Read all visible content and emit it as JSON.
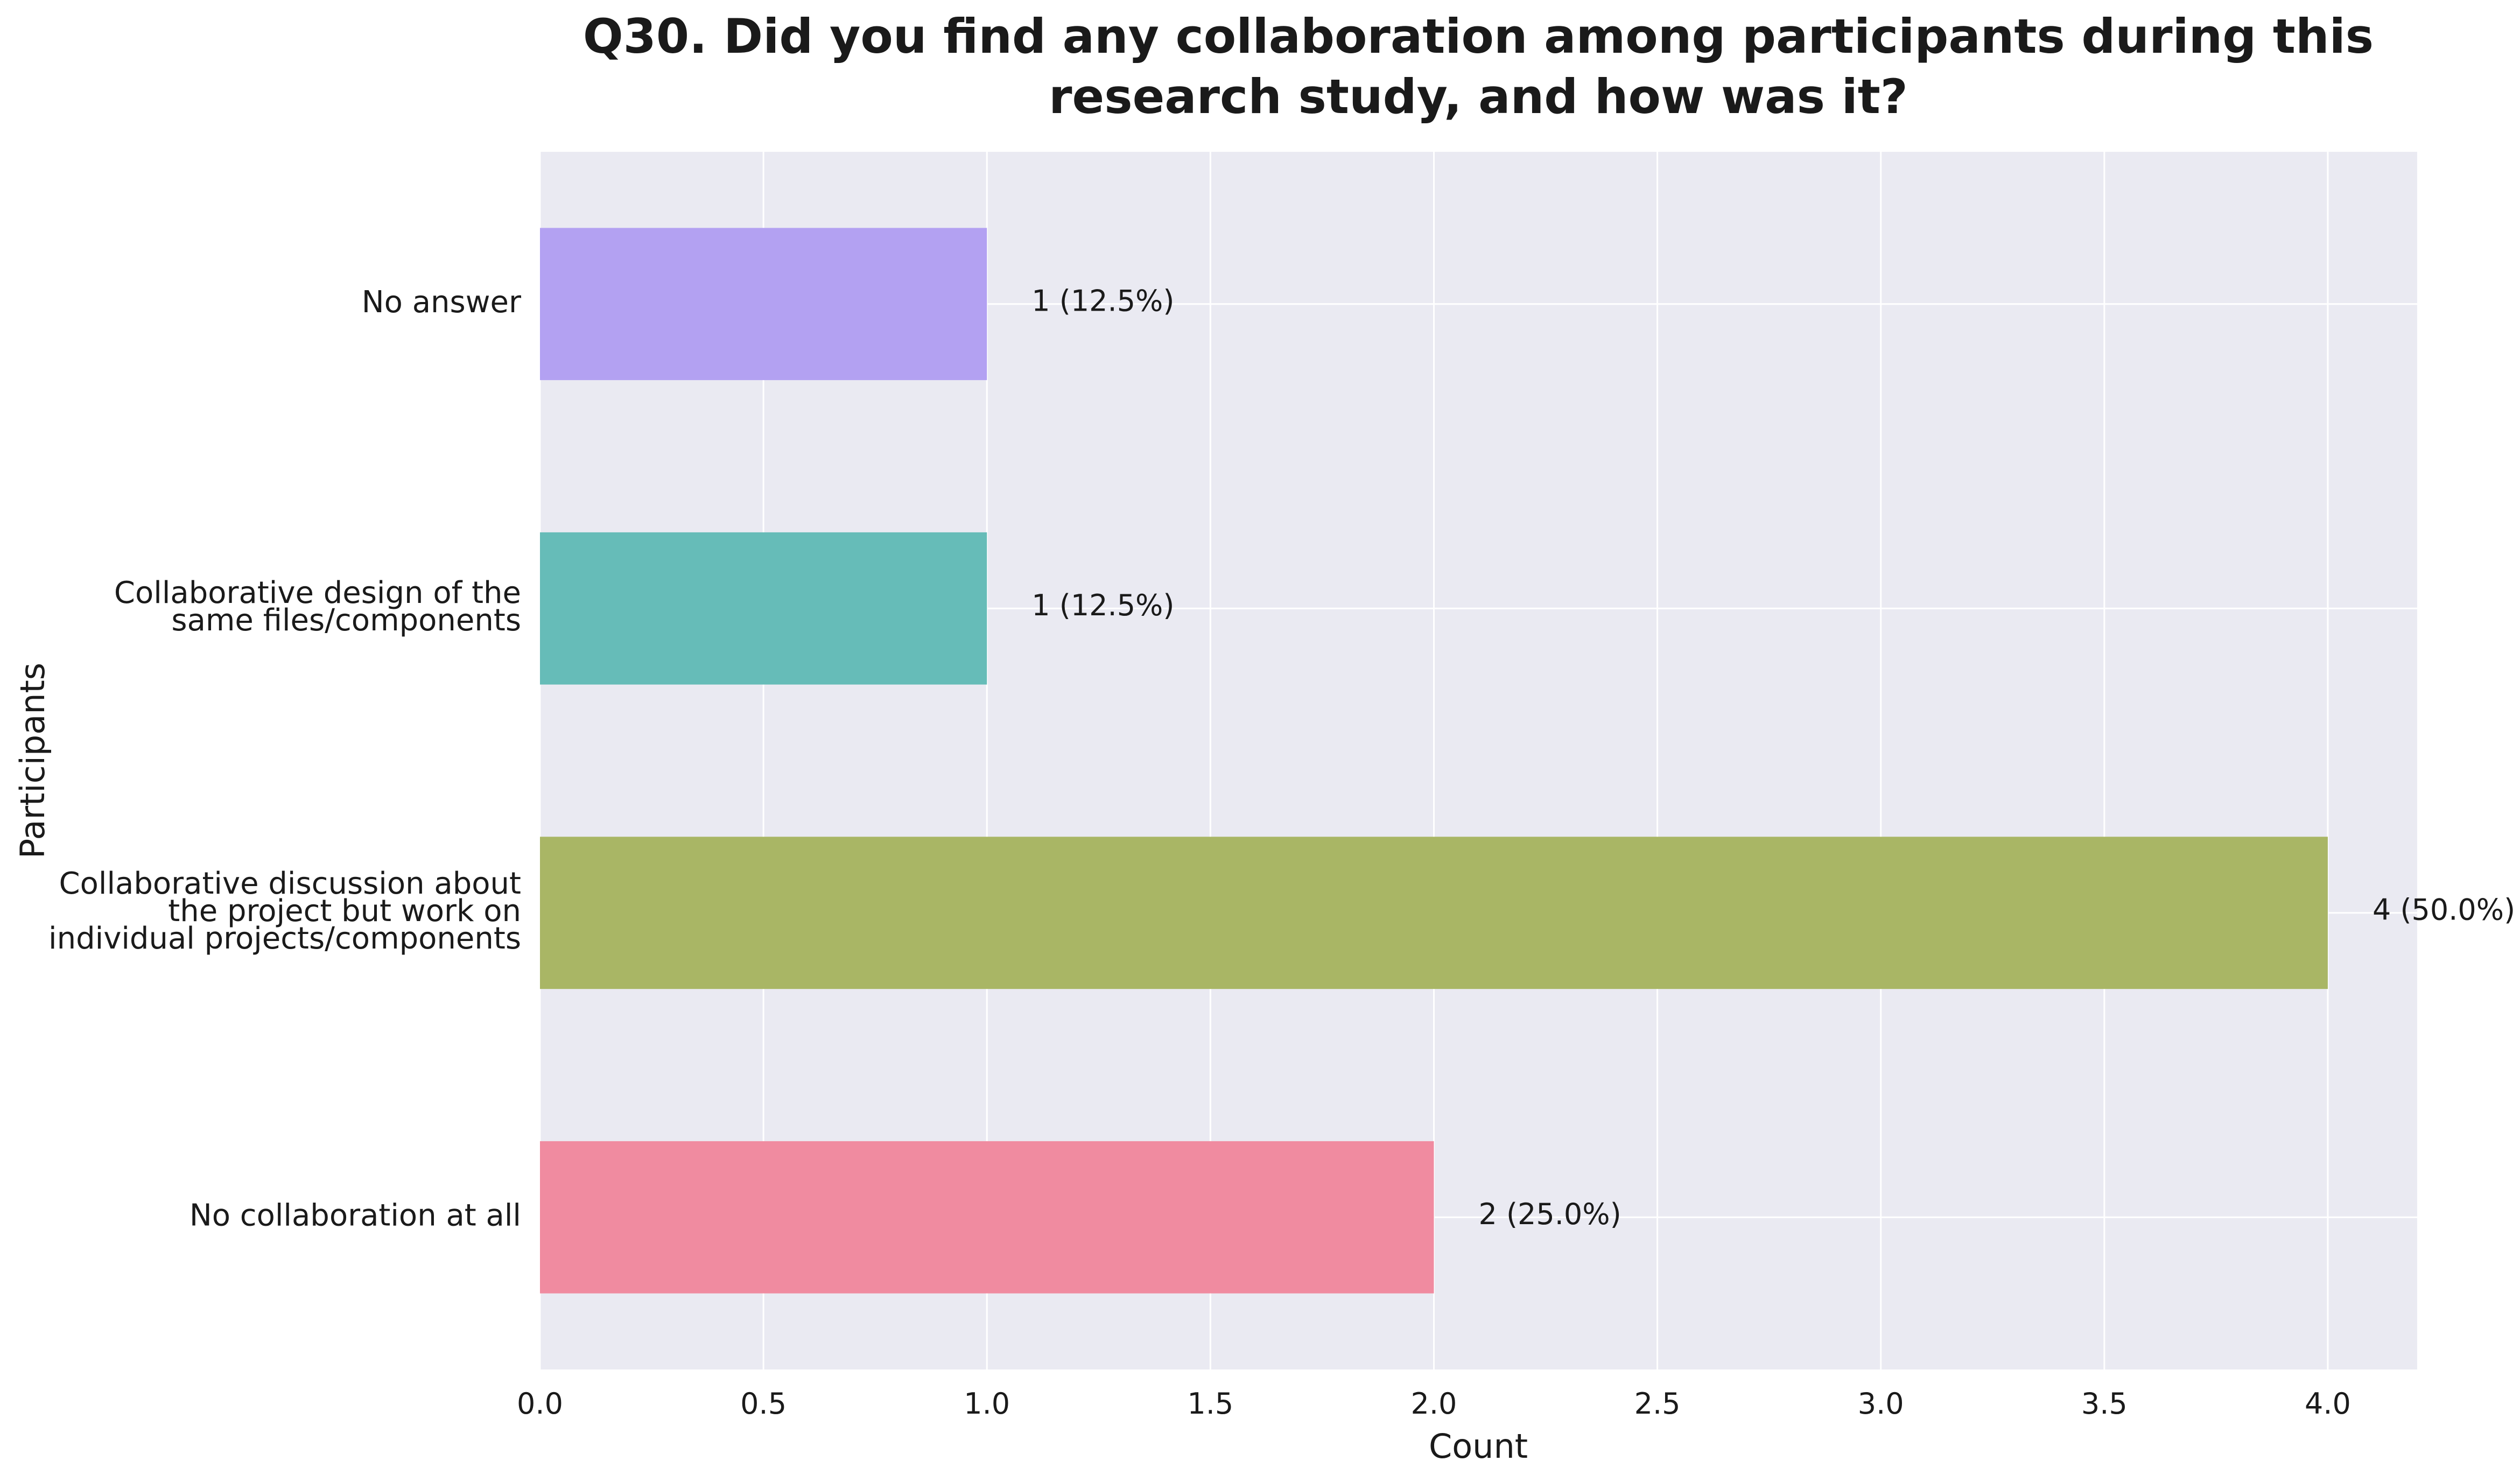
{
  "chart_data": {
    "type": "bar",
    "orientation": "horizontal",
    "title": "Q30. Did you find any collaboration among participants during this research study, and how was it?",
    "title_lines": [
      "Q30. Did you find any collaboration among participants during this",
      "research study, and how was it?"
    ],
    "xlabel": "Count",
    "ylabel": "Participants",
    "xlim": [
      0,
      4.2
    ],
    "xticks": [
      "0.0",
      "0.5",
      "1.0",
      "1.5",
      "2.0",
      "2.5",
      "3.0",
      "3.5",
      "4.0"
    ],
    "grid": true,
    "categories": [
      "No answer",
      "Collaborative design of the same files/components",
      "Collaborative discussion about the project but work on individual projects/components",
      "No collaboration at all"
    ],
    "category_lines": [
      [
        "No answer"
      ],
      [
        "Collaborative design of the",
        "same files/components"
      ],
      [
        "Collaborative discussion about",
        "the project but work on",
        "individual projects/components"
      ],
      [
        "No collaboration at all"
      ]
    ],
    "values": [
      1,
      1,
      4,
      2
    ],
    "value_labels": [
      "1 (12.5%)",
      "1 (12.5%)",
      "4 (50.0%)",
      "2 (25.0%)"
    ],
    "colors": [
      "#b3a1f2",
      "#66bcb8",
      "#a9b665",
      "#f08ba0"
    ],
    "background_color": "#eaeaf2"
  }
}
